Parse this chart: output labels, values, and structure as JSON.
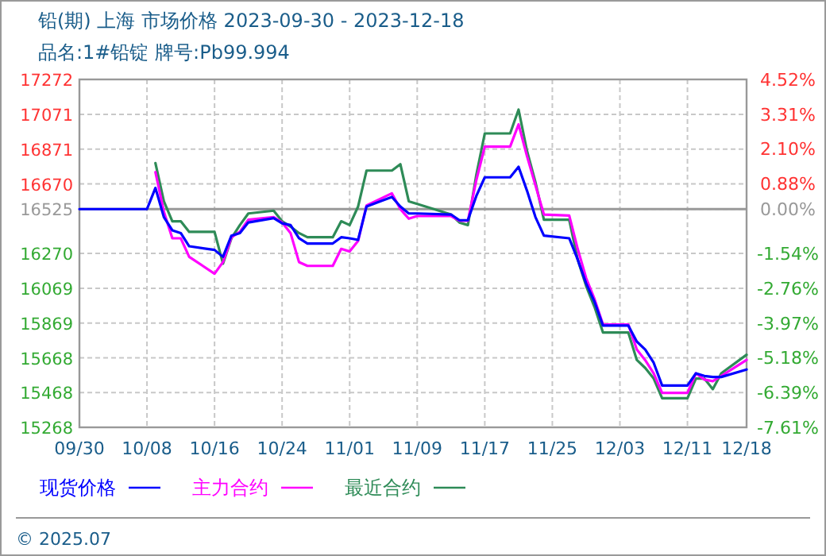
{
  "chart_data": {
    "type": "line",
    "title": "铅(期) 上海 市场价格 2023-09-30 - 2023-12-18",
    "subtitle": "品名:1#铅锭 牌号:Pb99.994",
    "x": [
      "2023-09-30",
      "2023-10-08",
      "2023-10-09",
      "2023-10-10",
      "2023-10-11",
      "2023-10-12",
      "2023-10-13",
      "2023-10-16",
      "2023-10-17",
      "2023-10-18",
      "2023-10-19",
      "2023-10-20",
      "2023-10-23",
      "2023-10-24",
      "2023-10-25",
      "2023-10-26",
      "2023-10-27",
      "2023-10-30",
      "2023-10-31",
      "2023-11-01",
      "2023-11-02",
      "2023-11-03",
      "2023-11-06",
      "2023-11-07",
      "2023-11-08",
      "2023-11-09",
      "2023-11-13",
      "2023-11-14",
      "2023-11-15",
      "2023-11-16",
      "2023-11-17",
      "2023-11-20",
      "2023-11-21",
      "2023-11-22",
      "2023-11-23",
      "2023-11-24",
      "2023-11-27",
      "2023-11-28",
      "2023-11-29",
      "2023-11-30",
      "2023-12-01",
      "2023-12-04",
      "2023-12-05",
      "2023-12-06",
      "2023-12-07",
      "2023-12-08",
      "2023-12-11",
      "2023-12-12",
      "2023-12-13",
      "2023-12-14",
      "2023-12-15",
      "2023-12-18"
    ],
    "series": [
      {
        "name": "现货价格",
        "color": "#0000ff",
        "values": [
          16525,
          16525,
          16647,
          16479,
          16403,
          16387,
          16311,
          16290,
          16250,
          16372,
          16387,
          16448,
          16473,
          16443,
          16433,
          16357,
          16327,
          16327,
          16363,
          16357,
          16348,
          16540,
          16595,
          16540,
          16500,
          16500,
          16494,
          16461,
          16461,
          16601,
          16708,
          16708,
          16769,
          16631,
          16479,
          16372,
          16357,
          16235,
          16098,
          15991,
          15854,
          15854,
          15762,
          15716,
          15640,
          15509,
          15509,
          15579,
          15564,
          15558,
          15558,
          15601
        ]
      },
      {
        "name": "主力合约",
        "color": "#ff00ff",
        "values": [
          null,
          null,
          16738,
          16510,
          16357,
          16357,
          16250,
          16153,
          16220,
          16363,
          16394,
          16464,
          16479,
          16448,
          16387,
          16220,
          16198,
          16198,
          16296,
          16281,
          16342,
          16546,
          16616,
          16525,
          16470,
          16485,
          16485,
          16458,
          16458,
          16692,
          16885,
          16885,
          17013,
          16830,
          16662,
          16494,
          16488,
          16296,
          16128,
          16006,
          15860,
          15860,
          15716,
          15655,
          15579,
          15466,
          15466,
          15579,
          15543,
          15534,
          15564,
          15656
        ]
      },
      {
        "name": "最近合约",
        "color": "#2e8b57",
        "values": [
          null,
          null,
          16790,
          16570,
          16455,
          16455,
          16394,
          16394,
          16211,
          16357,
          16433,
          16500,
          16516,
          16455,
          16424,
          16387,
          16363,
          16363,
          16455,
          16433,
          16540,
          16747,
          16747,
          16784,
          16570,
          16555,
          16494,
          16448,
          16433,
          16723,
          16961,
          16961,
          17098,
          16860,
          16680,
          16464,
          16464,
          16235,
          16082,
          15961,
          15814,
          15814,
          15656,
          15610,
          15549,
          15436,
          15436,
          15549,
          15549,
          15488,
          15579,
          15686
        ]
      }
    ],
    "xlim": [
      "2023-09-30",
      "2023-12-18"
    ],
    "xticks": [
      {
        "value": "2023-09-30",
        "label": "09/30"
      },
      {
        "value": "2023-10-08",
        "label": "10/08"
      },
      {
        "value": "2023-10-16",
        "label": "10/16"
      },
      {
        "value": "2023-10-24",
        "label": "10/24"
      },
      {
        "value": "2023-11-01",
        "label": "11/01"
      },
      {
        "value": "2023-11-09",
        "label": "11/09"
      },
      {
        "value": "2023-11-17",
        "label": "11/17"
      },
      {
        "value": "2023-11-25",
        "label": "11/25"
      },
      {
        "value": "2023-12-03",
        "label": "12/03"
      },
      {
        "value": "2023-12-11",
        "label": "12/11"
      },
      {
        "value": "2023-12-18",
        "label": "12/18"
      }
    ],
    "ylim": [
      15268,
      17272
    ],
    "yticks": [
      15268,
      15468,
      15668,
      15869,
      16069,
      16270,
      16525,
      16670,
      16871,
      17071,
      17272
    ],
    "y2lim": [
      -7.61,
      4.52
    ],
    "y2ticks": [
      {
        "value": -7.61,
        "label": "-7.61%"
      },
      {
        "value": -6.39,
        "label": "-6.39%"
      },
      {
        "value": -5.18,
        "label": "-5.18%"
      },
      {
        "value": -3.97,
        "label": "-3.97%"
      },
      {
        "value": -2.76,
        "label": "-2.76%"
      },
      {
        "value": -1.54,
        "label": "-1.54%"
      },
      {
        "value": 0,
        "label": "0.00%"
      },
      {
        "value": 0.88,
        "label": "0.88%"
      },
      {
        "value": 2.1,
        "label": "2.10%"
      },
      {
        "value": 3.31,
        "label": "3.31%"
      },
      {
        "value": 4.52,
        "label": "4.52%"
      }
    ],
    "ref_lines": [
      {
        "axis": "y",
        "value": 16525,
        "color": "#999999"
      }
    ],
    "grid": true,
    "legend": "bottom",
    "annotations": [
      "© 2025.07"
    ]
  }
}
